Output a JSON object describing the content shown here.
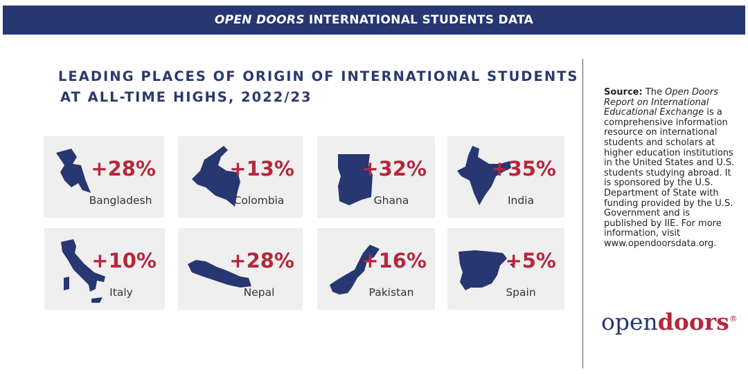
{
  "header": {
    "brand": "OPEN DOORS",
    "title": "INTERNATIONAL STUDENTS DATA"
  },
  "title": {
    "line_1": "LEADING PLACES OF ORIGIN OF INTERNATIONAL STUDENTS",
    "line_2": "AT ALL-TIME HIGHS, 2022/23"
  },
  "cards": [
    {
      "change": "+28%",
      "country": "Bangladesh"
    },
    {
      "change": "+13%",
      "country": "Colombia"
    },
    {
      "change": "+32%",
      "country": "Ghana"
    },
    {
      "change": "+35%",
      "country": "India"
    },
    {
      "change": "+10%",
      "country": "Italy"
    },
    {
      "change": "+28%",
      "country": "Nepal"
    },
    {
      "change": "+16%",
      "country": "Pakistan"
    },
    {
      "change": "+5%",
      "country": "Spain"
    }
  ],
  "source": {
    "label": "Source:",
    "text_1": "The",
    "report": "Open Doors Report on International Educational Exchange",
    "text_2": "is a comprehensive information resource on international students and scholars at higher education institutions in the United States and U.S. students studying abroad. It is sponsored by the U.S. Department of State with funding provided by the U.S. Government and is published by IIE. For more information, visit www.opendoorsdata.org."
  },
  "logo": {
    "open": "open",
    "doors": "doors",
    "mark": "®"
  }
}
